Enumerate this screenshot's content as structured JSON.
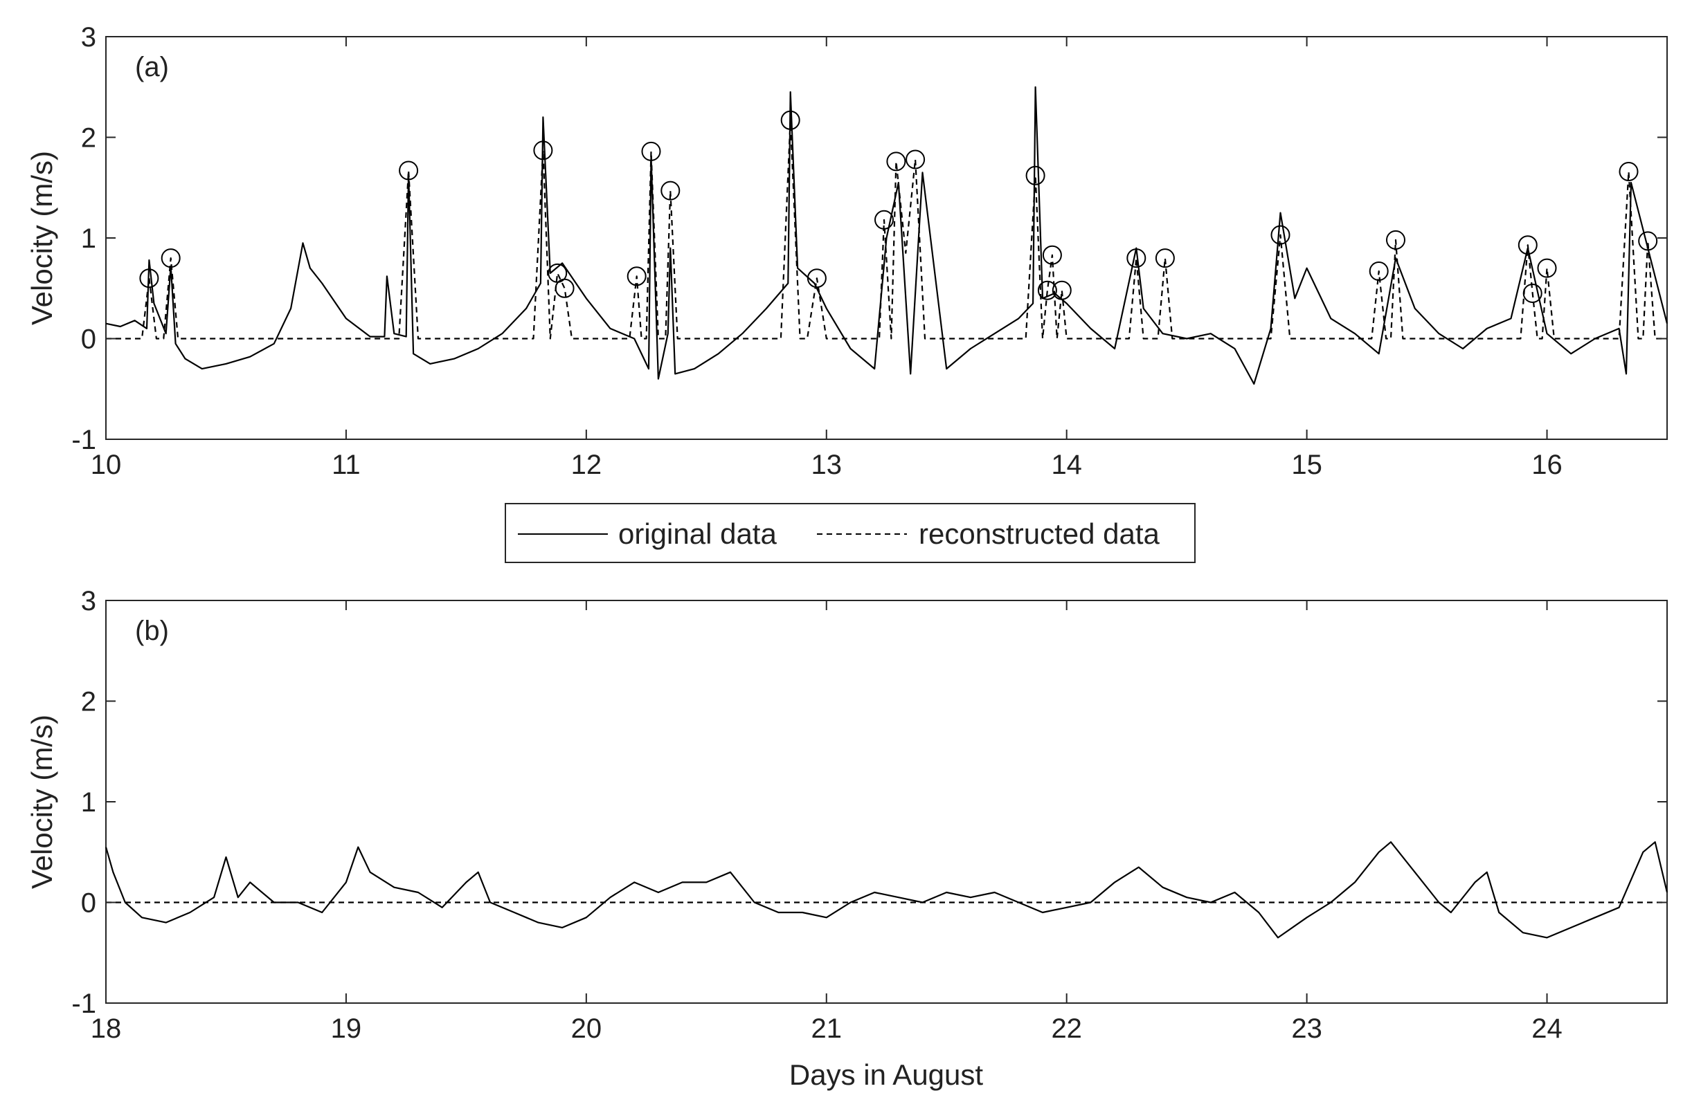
{
  "chart_data": [
    {
      "type": "line",
      "panel_label": "(a)",
      "ylabel": "Velocity (m/s)",
      "xlabel": "",
      "xlim": [
        10,
        16.5
      ],
      "ylim": [
        -1,
        3
      ],
      "xticks": [
        "10",
        "11",
        "12",
        "13",
        "14",
        "15",
        "16"
      ],
      "yticks": [
        "-1",
        "0",
        "1",
        "2",
        "3"
      ],
      "series": [
        {
          "name": "original data",
          "style": "solid",
          "x": [
            10.0,
            10.06,
            10.12,
            10.17,
            10.18,
            10.2,
            10.25,
            10.27,
            10.29,
            10.33,
            10.4,
            10.5,
            10.6,
            10.7,
            10.77,
            10.82,
            10.85,
            10.9,
            11.0,
            11.1,
            11.16,
            11.17,
            11.2,
            11.25,
            11.26,
            11.28,
            11.35,
            11.45,
            11.55,
            11.65,
            11.75,
            11.81,
            11.82,
            11.85,
            11.9,
            12.0,
            12.1,
            12.2,
            12.26,
            12.27,
            12.3,
            12.34,
            12.35,
            12.37,
            12.45,
            12.55,
            12.65,
            12.75,
            12.84,
            12.85,
            12.88,
            12.95,
            13.0,
            13.1,
            13.2,
            13.25,
            13.3,
            13.35,
            13.4,
            13.5,
            13.6,
            13.7,
            13.8,
            13.86,
            13.87,
            13.9,
            13.95,
            14.0,
            14.1,
            14.2,
            14.29,
            14.32,
            14.4,
            14.5,
            14.6,
            14.7,
            14.78,
            14.85,
            14.89,
            14.95,
            15.0,
            15.1,
            15.2,
            15.3,
            15.37,
            15.45,
            15.55,
            15.65,
            15.75,
            15.85,
            15.92,
            16.0,
            16.1,
            16.2,
            16.3,
            16.33,
            16.35,
            16.42,
            16.5
          ],
          "y": [
            0.15,
            0.12,
            0.18,
            0.1,
            0.78,
            0.35,
            0.05,
            0.72,
            -0.05,
            -0.2,
            -0.3,
            -0.25,
            -0.18,
            -0.05,
            0.3,
            0.95,
            0.7,
            0.55,
            0.2,
            0.02,
            0.02,
            0.62,
            0.05,
            0.02,
            1.65,
            -0.15,
            -0.25,
            -0.2,
            -0.1,
            0.05,
            0.3,
            0.55,
            2.2,
            0.65,
            0.75,
            0.4,
            0.1,
            0.0,
            -0.3,
            1.8,
            -0.4,
            0.05,
            0.9,
            -0.35,
            -0.3,
            -0.15,
            0.05,
            0.3,
            0.55,
            2.45,
            0.7,
            0.55,
            0.3,
            -0.1,
            -0.3,
            1.0,
            1.55,
            -0.35,
            1.65,
            -0.3,
            -0.1,
            0.05,
            0.2,
            0.35,
            2.5,
            0.4,
            0.45,
            0.35,
            0.1,
            -0.1,
            0.9,
            0.3,
            0.05,
            0.0,
            0.05,
            -0.1,
            -0.45,
            0.1,
            1.25,
            0.4,
            0.7,
            0.2,
            0.05,
            -0.15,
            0.8,
            0.3,
            0.05,
            -0.1,
            0.1,
            0.2,
            0.9,
            0.05,
            -0.15,
            0.0,
            0.1,
            -0.35,
            1.55,
            0.9,
            0.15
          ]
        },
        {
          "name": "reconstructed data",
          "style": "dashed",
          "x": [
            10.0,
            10.15,
            10.18,
            10.21,
            10.24,
            10.27,
            10.3,
            11.22,
            11.26,
            11.3,
            11.78,
            11.82,
            11.85,
            11.88,
            11.91,
            11.94,
            12.18,
            12.21,
            12.23,
            12.25,
            12.27,
            12.3,
            12.33,
            12.35,
            12.38,
            12.81,
            12.85,
            12.89,
            12.92,
            12.96,
            13.0,
            13.22,
            13.24,
            13.27,
            13.29,
            13.33,
            13.37,
            13.41,
            13.83,
            13.87,
            13.9,
            13.92,
            13.94,
            13.96,
            13.98,
            14.0,
            14.26,
            14.29,
            14.32,
            14.38,
            14.41,
            14.44,
            14.85,
            14.89,
            14.93,
            15.27,
            15.3,
            15.33,
            15.35,
            15.37,
            15.4,
            15.89,
            15.92,
            15.94,
            15.96,
            15.98,
            16.0,
            16.03,
            16.3,
            16.34,
            16.38,
            16.4,
            16.42,
            16.45,
            16.5
          ],
          "y": [
            0.0,
            0.0,
            0.6,
            0.0,
            0.0,
            0.8,
            0.0,
            0.0,
            1.67,
            0.0,
            0.0,
            1.87,
            0.0,
            0.65,
            0.5,
            0.0,
            0.0,
            0.62,
            0.0,
            0.0,
            1.86,
            0.0,
            0.0,
            1.47,
            0.0,
            0.0,
            2.17,
            0.0,
            0.0,
            0.6,
            0.0,
            0.0,
            1.18,
            0.0,
            1.76,
            0.85,
            1.78,
            0.0,
            0.0,
            1.62,
            0.0,
            0.48,
            0.83,
            0.0,
            0.48,
            0.0,
            0.0,
            0.8,
            0.0,
            0.0,
            0.8,
            0.0,
            0.0,
            1.03,
            0.0,
            0.0,
            0.67,
            0.0,
            0.0,
            0.98,
            0.0,
            0.0,
            0.93,
            0.45,
            0.0,
            0.0,
            0.7,
            0.0,
            0.0,
            1.66,
            0.0,
            0.0,
            0.97,
            0.0,
            0.0
          ]
        }
      ],
      "markers": {
        "shape": "circle",
        "x": [
          10.18,
          10.27,
          11.26,
          11.82,
          11.88,
          11.91,
          12.21,
          12.27,
          12.35,
          12.85,
          12.96,
          13.24,
          13.29,
          13.37,
          13.87,
          13.92,
          13.94,
          13.98,
          14.29,
          14.41,
          14.89,
          15.3,
          15.37,
          15.92,
          15.94,
          16.0,
          16.34,
          16.42
        ],
        "y": [
          0.6,
          0.8,
          1.67,
          1.87,
          0.65,
          0.5,
          0.62,
          1.86,
          1.47,
          2.17,
          0.6,
          1.18,
          1.76,
          1.78,
          1.62,
          0.48,
          0.83,
          0.48,
          0.8,
          0.8,
          1.03,
          0.67,
          0.98,
          0.93,
          0.45,
          0.7,
          1.66,
          0.97
        ]
      }
    },
    {
      "type": "line",
      "panel_label": "(b)",
      "ylabel": "Velocity (m/s)",
      "xlabel": "Days in August",
      "xlim": [
        18,
        24.5
      ],
      "ylim": [
        -1,
        3
      ],
      "xticks": [
        "18",
        "19",
        "20",
        "21",
        "22",
        "23",
        "24"
      ],
      "yticks": [
        "-1",
        "0",
        "1",
        "2",
        "3"
      ],
      "series": [
        {
          "name": "original data",
          "style": "solid",
          "x": [
            18.0,
            18.03,
            18.08,
            18.15,
            18.25,
            18.35,
            18.45,
            18.5,
            18.55,
            18.6,
            18.7,
            18.8,
            18.9,
            19.0,
            19.05,
            19.1,
            19.2,
            19.3,
            19.4,
            19.5,
            19.55,
            19.6,
            19.7,
            19.8,
            19.9,
            20.0,
            20.1,
            20.2,
            20.3,
            20.4,
            20.5,
            20.6,
            20.7,
            20.8,
            20.9,
            21.0,
            21.1,
            21.2,
            21.3,
            21.4,
            21.5,
            21.6,
            21.7,
            21.8,
            21.9,
            22.0,
            22.1,
            22.2,
            22.3,
            22.4,
            22.5,
            22.6,
            22.7,
            22.8,
            22.88,
            23.0,
            23.1,
            23.2,
            23.3,
            23.35,
            23.45,
            23.55,
            23.6,
            23.7,
            23.75,
            23.8,
            23.9,
            24.0,
            24.1,
            24.2,
            24.3,
            24.4,
            24.45,
            24.5
          ],
          "y": [
            0.55,
            0.3,
            0.0,
            -0.15,
            -0.2,
            -0.1,
            0.05,
            0.45,
            0.05,
            0.2,
            0.0,
            0.0,
            -0.1,
            0.2,
            0.55,
            0.3,
            0.15,
            0.1,
            -0.05,
            0.2,
            0.3,
            0.0,
            -0.1,
            -0.2,
            -0.25,
            -0.15,
            0.05,
            0.2,
            0.1,
            0.2,
            0.2,
            0.3,
            0.0,
            -0.1,
            -0.1,
            -0.15,
            0.0,
            0.1,
            0.05,
            0.0,
            0.1,
            0.05,
            0.1,
            0.0,
            -0.1,
            -0.05,
            0.0,
            0.2,
            0.35,
            0.15,
            0.05,
            0.0,
            0.1,
            -0.1,
            -0.35,
            -0.15,
            0.0,
            0.2,
            0.5,
            0.6,
            0.3,
            0.0,
            -0.1,
            0.2,
            0.3,
            -0.1,
            -0.3,
            -0.35,
            -0.25,
            -0.15,
            -0.05,
            0.5,
            0.6,
            0.1
          ]
        },
        {
          "name": "reconstructed data",
          "style": "dashed",
          "x": [
            18.0,
            24.5
          ],
          "y": [
            0.0,
            0.0
          ]
        }
      ]
    }
  ],
  "legend": {
    "position": "between panels, centered",
    "items": [
      {
        "label": "original data",
        "style": "solid"
      },
      {
        "label": "reconstructed data",
        "style": "dashed"
      }
    ]
  },
  "colors": {
    "line": "#000000",
    "axis": "#262626",
    "background": "#ffffff"
  }
}
